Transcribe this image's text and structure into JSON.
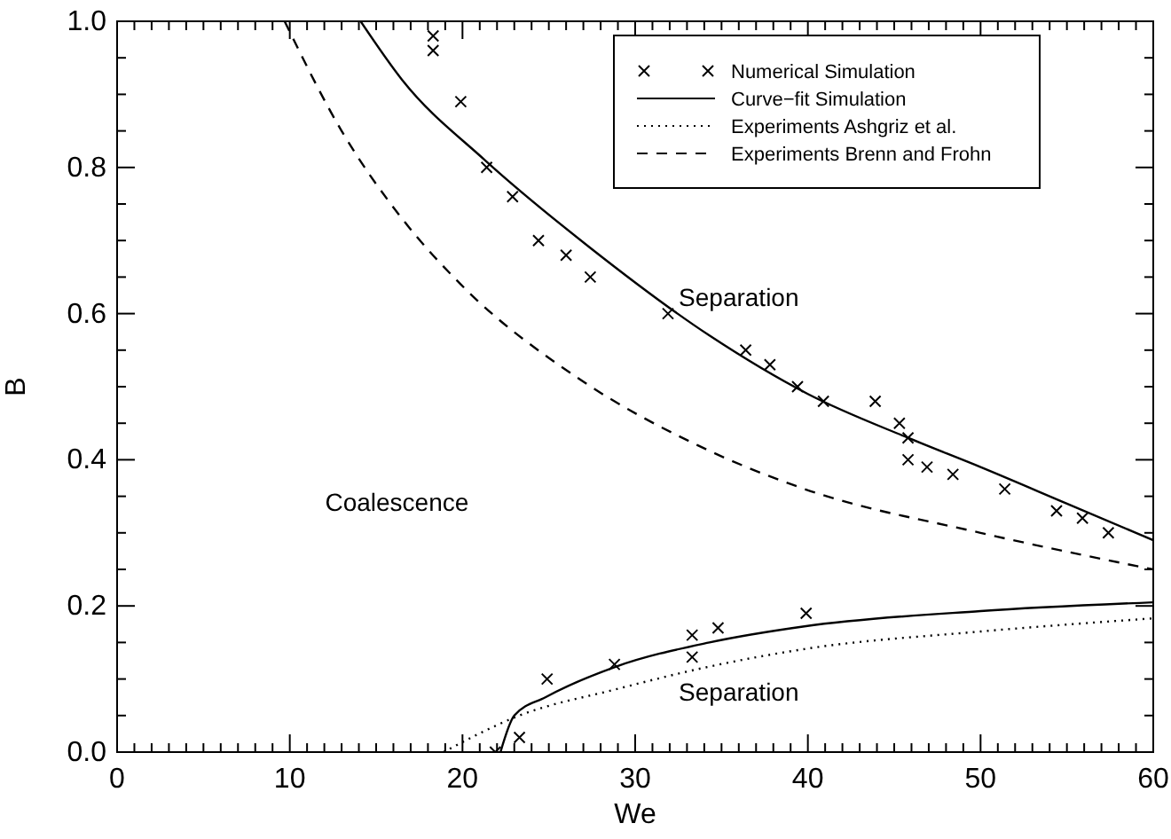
{
  "chart_data": {
    "type": "line",
    "xlabel": "We",
    "ylabel": "B",
    "xlim": [
      0,
      60
    ],
    "ylim": [
      0,
      1.0
    ],
    "xticks": [
      0,
      {
        "value": 1,
        "label": null
      },
      {
        "value": 2,
        "label": null
      },
      {
        "value": 3,
        "label": null
      },
      {
        "value": 4,
        "label": null
      },
      {
        "value": 5,
        "label": null
      },
      {
        "value": 6,
        "label": null
      },
      {
        "value": 7,
        "label": null
      },
      {
        "value": 8,
        "label": null
      },
      {
        "value": 9,
        "label": null
      },
      10,
      {
        "value": 11,
        "label": null
      },
      {
        "value": 12,
        "label": null
      },
      {
        "value": 13,
        "label": null
      },
      {
        "value": 14,
        "label": null
      },
      {
        "value": 15,
        "label": null
      },
      {
        "value": 16,
        "label": null
      },
      {
        "value": 17,
        "label": null
      },
      {
        "value": 18,
        "label": null
      },
      {
        "value": 19,
        "label": null
      },
      20,
      {
        "value": 21,
        "label": null
      },
      {
        "value": 22,
        "label": null
      },
      {
        "value": 23,
        "label": null
      },
      {
        "value": 24,
        "label": null
      },
      {
        "value": 25,
        "label": null
      },
      {
        "value": 26,
        "label": null
      },
      {
        "value": 27,
        "label": null
      },
      {
        "value": 28,
        "label": null
      },
      {
        "value": 29,
        "label": null
      },
      30,
      {
        "value": 31,
        "label": null
      },
      {
        "value": 32,
        "label": null
      },
      {
        "value": 33,
        "label": null
      },
      {
        "value": 34,
        "label": null
      },
      {
        "value": 35,
        "label": null
      },
      {
        "value": 36,
        "label": null
      },
      {
        "value": 37,
        "label": null
      },
      {
        "value": 38,
        "label": null
      },
      {
        "value": 39,
        "label": null
      },
      40,
      {
        "value": 41,
        "label": null
      },
      {
        "value": 42,
        "label": null
      },
      {
        "value": 43,
        "label": null
      },
      {
        "value": 44,
        "label": null
      },
      {
        "value": 45,
        "label": null
      },
      {
        "value": 46,
        "label": null
      },
      {
        "value": 47,
        "label": null
      },
      {
        "value": 48,
        "label": null
      },
      {
        "value": 49,
        "label": null
      },
      50,
      {
        "value": 51,
        "label": null
      },
      {
        "value": 52,
        "label": null
      },
      {
        "value": 53,
        "label": null
      },
      {
        "value": 54,
        "label": null
      },
      {
        "value": 55,
        "label": null
      },
      {
        "value": 56,
        "label": null
      },
      {
        "value": 57,
        "label": null
      },
      {
        "value": 58,
        "label": null
      },
      {
        "value": 59,
        "label": null
      },
      60
    ],
    "yticks": [
      {
        "value": 0,
        "label": "0.0"
      },
      {
        "value": 0.05,
        "label": null
      },
      {
        "value": 0.1,
        "label": null
      },
      {
        "value": 0.15,
        "label": null
      },
      {
        "value": 0.2,
        "label": "0.2"
      },
      {
        "value": 0.25,
        "label": null
      },
      {
        "value": 0.3,
        "label": null
      },
      {
        "value": 0.35,
        "label": null
      },
      {
        "value": 0.4,
        "label": "0.4"
      },
      {
        "value": 0.45,
        "label": null
      },
      {
        "value": 0.5,
        "label": null
      },
      {
        "value": 0.55,
        "label": null
      },
      {
        "value": 0.6,
        "label": "0.6"
      },
      {
        "value": 0.65,
        "label": null
      },
      {
        "value": 0.7,
        "label": null
      },
      {
        "value": 0.75,
        "label": null
      },
      {
        "value": 0.8,
        "label": "0.8"
      },
      {
        "value": 0.85,
        "label": null
      },
      {
        "value": 0.9,
        "label": null
      },
      {
        "value": 0.95,
        "label": null
      },
      {
        "value": 1.0,
        "label": "1.0"
      }
    ],
    "grid": false,
    "legend": "top right",
    "annotations": [
      "Separation",
      "Coalescence",
      "Separation"
    ],
    "series": [
      {
        "name": "Numerical Simulation",
        "type": "scatter",
        "marker": "cross",
        "color": "#000000",
        "x": [
          18.3,
          18.3,
          19.9,
          21.4,
          22.9,
          24.4,
          26.0,
          27.4,
          31.9,
          36.4,
          37.8,
          39.4,
          40.9,
          43.9,
          45.3,
          45.8,
          45.8,
          46.9,
          48.4,
          51.4,
          54.4,
          55.9,
          57.4,
          21.9,
          23.3,
          24.9,
          28.8,
          33.3,
          33.3,
          34.8,
          39.9
        ],
        "values": [
          0.98,
          0.96,
          0.89,
          0.8,
          0.76,
          0.7,
          0.68,
          0.65,
          0.6,
          0.55,
          0.53,
          0.5,
          0.48,
          0.48,
          0.45,
          0.43,
          0.4,
          0.39,
          0.38,
          0.36,
          0.33,
          0.32,
          0.3,
          0.0,
          0.02,
          0.1,
          0.12,
          0.16,
          0.13,
          0.17,
          0.19
        ]
      },
      {
        "name": "Curve−fit Simulation",
        "line_style": "solid",
        "color": "#000000",
        "x": [
          14.1,
          16.5,
          21.3,
          27.4,
          34.3,
          40,
          45.8,
          50,
          55,
          60
        ],
        "values": [
          1.0,
          0.92,
          0.81,
          0.69,
          0.57,
          0.49,
          0.43,
          0.39,
          0.34,
          0.29
        ]
      },
      {
        "line_style": "solid",
        "color": "#000000",
        "x": [
          22.2,
          23.0,
          24.8,
          28.9,
          34.3,
          39.8,
          50,
          60
        ],
        "values": [
          0.0,
          0.05,
          0.075,
          0.117,
          0.15,
          0.172,
          0.193,
          0.205
        ]
      },
      {
        "name": "Experiments Ashgriz et al.",
        "line_style": "dotted",
        "color": "#000000",
        "x": [
          18.9,
          23.3,
          28.9,
          34.3,
          39.8,
          50,
          60
        ],
        "values": [
          0.0,
          0.05,
          0.086,
          0.117,
          0.141,
          0.165,
          0.183
        ]
      },
      {
        "name": "Experiments Brenn and Frohn",
        "line_style": "dashed",
        "color": "#000000",
        "x": [
          9.7,
          13.0,
          16.5,
          19.9,
          26.8,
          33.6,
          39.8,
          50,
          60
        ],
        "values": [
          1.0,
          0.85,
          0.73,
          0.64,
          0.51,
          0.42,
          0.36,
          0.3,
          0.25
        ]
      }
    ]
  }
}
